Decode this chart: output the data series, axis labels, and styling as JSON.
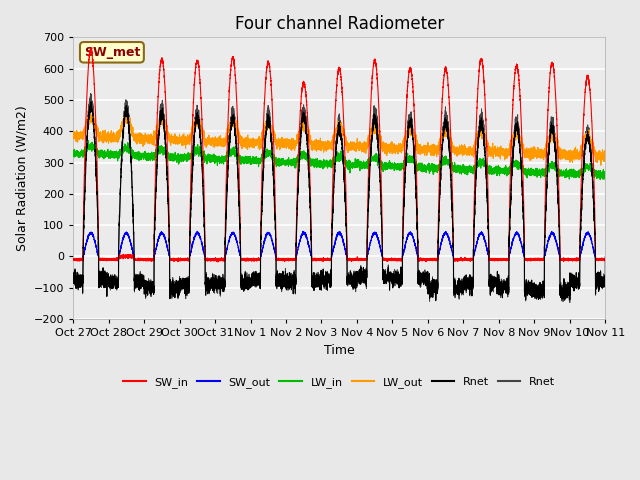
{
  "title": "Four channel Radiometer",
  "xlabel": "Time",
  "ylabel": "Solar Radiation (W/m2)",
  "ylim": [
    -200,
    700
  ],
  "yticks": [
    -200,
    -100,
    0,
    100,
    200,
    300,
    400,
    500,
    600,
    700
  ],
  "xlim": [
    0,
    15
  ],
  "x_tick_labels": [
    "Oct 27",
    "Oct 28",
    "Oct 29",
    "Oct 30",
    "Oct 31",
    "Nov 1",
    "Nov 2",
    "Nov 3",
    "Nov 4",
    "Nov 5",
    "Nov 6",
    "Nov 7",
    "Nov 8",
    "Nov 9",
    "Nov 10",
    "Nov 11"
  ],
  "annotation_text": "SW_met",
  "annotation_bg": "#ffffcc",
  "annotation_border": "#8B6914",
  "colors": {
    "SW_in": "#ff0000",
    "SW_out": "#0000ff",
    "LW_in": "#00bb00",
    "LW_out": "#ff9900",
    "Rnet_black": "#000000",
    "Rnet_dark": "#444444"
  },
  "legend_labels": [
    "SW_in",
    "SW_out",
    "LW_in",
    "LW_out",
    "Rnet",
    "Rnet"
  ],
  "legend_colors": [
    "#ff0000",
    "#0000ff",
    "#00bb00",
    "#ff9900",
    "#000000",
    "#444444"
  ],
  "bg_color": "#e8e8e8",
  "plot_bg": "#ebebeb",
  "grid_color": "#ffffff",
  "title_fontsize": 12,
  "axis_label_fontsize": 9,
  "tick_fontsize": 8
}
